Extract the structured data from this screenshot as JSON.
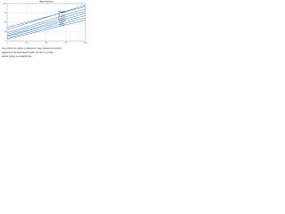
{
  "chart_data": {
    "type": "line",
    "title": "Vapor pressure",
    "x": [
      0,
      100
    ],
    "xlim": [
      0,
      100
    ],
    "ylim": [
      0,
      100
    ],
    "xticks": [
      0,
      25,
      50,
      75,
      100
    ],
    "yticks": [
      0,
      25,
      50,
      75,
      100
    ],
    "grid": true,
    "series": [
      {
        "name": "Water",
        "color": "#3b7fc4",
        "values": [
          8,
          62
        ]
      },
      {
        "name": "Ammonia",
        "color": "#3b7fc4",
        "values": [
          30,
          96
        ]
      },
      {
        "name": "Methanol",
        "color": "#3b7fc4",
        "values": [
          14,
          74
        ]
      },
      {
        "name": "Ethanol",
        "color": "#3b7fc4",
        "values": [
          12,
          68
        ]
      },
      {
        "name": "Benzene",
        "color": "#3b7fc4",
        "values": [
          18,
          80
        ]
      },
      {
        "name": "Toluene",
        "color": "#3b7fc4",
        "values": [
          5,
          56
        ]
      },
      {
        "name": "Acetone",
        "color": "#3b7fc4",
        "values": [
          22,
          86
        ]
      },
      {
        "name": "Propane",
        "color": "#3b7fc4",
        "values": [
          36,
          92
        ]
      }
    ],
    "caption": [
      "Cox chart of vapor pressures: log pressure plotted",
      "against a temperature scale chosen so that",
      "water gives a straight line."
    ]
  }
}
